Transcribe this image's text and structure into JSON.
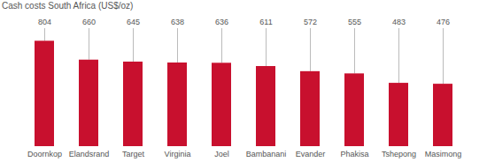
{
  "chart_data": {
    "type": "bar",
    "title": "Cash costs South Africa (US$/oz)",
    "categories": [
      "Doornkop",
      "Elandsrand",
      "Target",
      "Virginia",
      "Joel",
      "Bambanani",
      "Evander",
      "Phakisa",
      "Tshepong",
      "Masimong"
    ],
    "values": [
      804,
      660,
      645,
      638,
      636,
      611,
      572,
      555,
      483,
      476
    ],
    "color": "#c8102e",
    "ylim": [
      0,
      900
    ],
    "data_labels": true,
    "tick_labels": "x",
    "grid": false
  }
}
